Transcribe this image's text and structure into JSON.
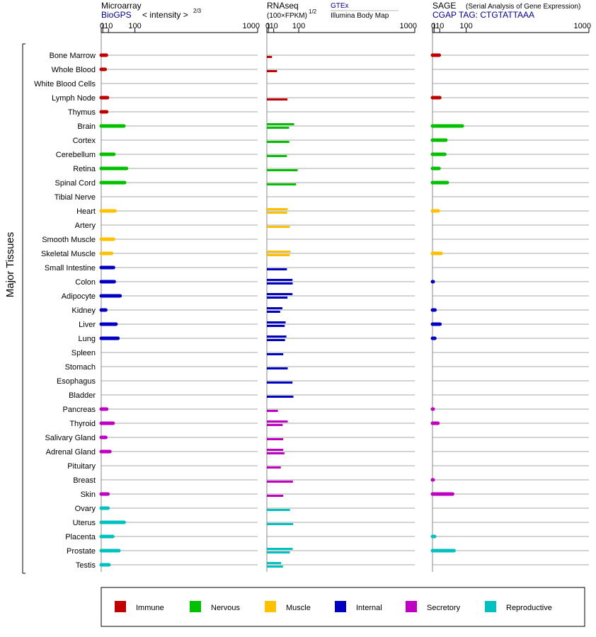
{
  "headers": {
    "microarray": {
      "title": "Microarray",
      "source": "BioGPS",
      "unit_prefix": "< intensity >",
      "unit_exp": "2/3"
    },
    "rnaseq": {
      "title": "RNAseq",
      "unit_prefix": "(100×FPKM)",
      "unit_exp": "1/2",
      "source1": "GTEx",
      "source2": "Illumina Body Map"
    },
    "sage": {
      "title": "SAGE",
      "subtitle": "(Serial Analysis of Gene Expression)",
      "tag": "CGAP TAG: CTGTATTAAA"
    }
  },
  "chart_data": {
    "type": "bar",
    "ylabel": "Major Tissues",
    "x_scale": "power",
    "x_ticks": [
      0,
      1,
      10,
      100,
      1000
    ],
    "x_tick_labels": [
      "0",
      "1",
      "10",
      "100",
      "1000"
    ],
    "xlim": [
      0,
      1000
    ],
    "categories": [
      "Bone Marrow",
      "Whole Blood",
      "White Blood Cells",
      "Lymph Node",
      "Thymus",
      "Brain",
      "Cortex",
      "Cerebellum",
      "Retina",
      "Spinal Cord",
      "Tibial Nerve",
      "Heart",
      "Artery",
      "Smooth Muscle",
      "Skeletal Muscle",
      "Small Intestine",
      "Colon",
      "Adipocyte",
      "Kidney",
      "Liver",
      "Lung",
      "Spleen",
      "Stomach",
      "Esophagus",
      "Bladder",
      "Pancreas",
      "Thyroid",
      "Salivary Gland",
      "Adrenal Gland",
      "Pituitary",
      "Breast",
      "Skin",
      "Ovary",
      "Uterus",
      "Placenta",
      "Prostate",
      "Testis"
    ],
    "groups": [
      "Immune",
      "Immune",
      "Immune",
      "Immune",
      "Immune",
      "Nervous",
      "Nervous",
      "Nervous",
      "Nervous",
      "Nervous",
      "Nervous",
      "Muscle",
      "Muscle",
      "Muscle",
      "Muscle",
      "Internal",
      "Internal",
      "Internal",
      "Internal",
      "Internal",
      "Internal",
      "Internal",
      "Internal",
      "Internal",
      "Internal",
      "Secretory",
      "Secretory",
      "Secretory",
      "Secretory",
      "Secretory",
      "Secretory",
      "Secretory",
      "Reproductive",
      "Reproductive",
      "Reproductive",
      "Reproductive",
      "Reproductive"
    ],
    "legend": [
      {
        "name": "Immune",
        "color": "#c00000"
      },
      {
        "name": "Nervous",
        "color": "#00c000"
      },
      {
        "name": "Muscle",
        "color": "#ffc000"
      },
      {
        "name": "Internal",
        "color": "#0000c0"
      },
      {
        "name": "Secretory",
        "color": "#c000c0"
      },
      {
        "name": "Reproductive",
        "color": "#00c0c0"
      }
    ],
    "legend_position": "bottom",
    "panels": [
      {
        "name": "Microarray",
        "series": [
          {
            "values": [
              6,
              4,
              null,
              8,
              6.5,
              55,
              null,
              23,
              65,
              58,
              null,
              26,
              null,
              22,
              17,
              22,
              24,
              42,
              5,
              29,
              35,
              null,
              null,
              null,
              null,
              6.5,
              21,
              5,
              13,
              null,
              null,
              9,
              9,
              56,
              20,
              38,
              11
            ]
          }
        ]
      },
      {
        "name": "RNAseq",
        "series": [
          {
            "name": "GTEx",
            "values": [
              null,
              null,
              null,
              null,
              null,
              79,
              null,
              null,
              null,
              null,
              null,
              53,
              null,
              null,
              64,
              null,
              72,
              72,
              34,
              45,
              48,
              null,
              null,
              null,
              null,
              null,
              53,
              null,
              37,
              null,
              null,
              null,
              null,
              null,
              null,
              73,
              30
            ]
          },
          {
            "name": "Illumina Body Map",
            "values": [
              6.5,
              18,
              null,
              52,
              null,
              58,
              59,
              50,
              95,
              88,
              null,
              51,
              61,
              null,
              61,
              50,
              73,
              52,
              27,
              42,
              43,
              37,
              53,
              72,
              76,
              20.5,
              35,
              37,
              41,
              29,
              74,
              37,
              62,
              75,
              null,
              61,
              36
            ]
          }
        ]
      },
      {
        "name": "SAGE",
        "series": [
          {
            "values": [
              9,
              null,
              null,
              10,
              null,
              83,
              25,
              22,
              8.5,
              29,
              null,
              7,
              null,
              null,
              13,
              null,
              0.05,
              null,
              2,
              10.5,
              1.8,
              null,
              null,
              null,
              null,
              0.04,
              6.5,
              null,
              null,
              null,
              0.04,
              46,
              null,
              null,
              1.6,
              51,
              null
            ]
          }
        ]
      }
    ]
  }
}
